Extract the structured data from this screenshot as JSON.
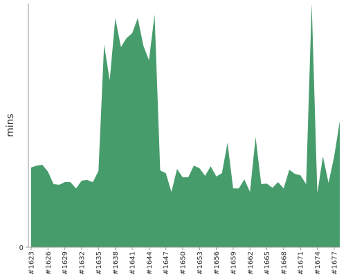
{
  "chart_data": {
    "type": "area",
    "y_label": "mins",
    "color": "#479c6c",
    "categories": [
      "#1623",
      null,
      null,
      "#1626",
      null,
      null,
      "#1629",
      null,
      null,
      "#1632",
      null,
      null,
      "#1635",
      null,
      null,
      "#1638",
      null,
      null,
      "#1641",
      null,
      null,
      "#1644",
      null,
      null,
      "#1647",
      null,
      null,
      "#1650",
      null,
      null,
      "#1653",
      null,
      null,
      "#1656",
      null,
      null,
      "#1659",
      null,
      null,
      "#1662",
      null,
      null,
      "#1665",
      null,
      null,
      "#1668",
      null,
      null,
      "#1671",
      null,
      null,
      "#1674",
      null,
      null,
      "#1677",
      null
    ],
    "values": [
      32.7,
      33.5,
      33.8,
      31.0,
      25.9,
      25.6,
      26.7,
      26.7,
      24.1,
      27.3,
      27.6,
      26.7,
      31.3,
      83.2,
      68.5,
      94.0,
      82.1,
      85.8,
      87.8,
      94.0,
      82.7,
      76.7,
      95.5,
      31.5,
      30.4,
      22.7,
      32.1,
      28.7,
      28.7,
      33.5,
      32.4,
      29.3,
      33.2,
      29.0,
      30.4,
      42.9,
      24.1,
      24.1,
      27.8,
      22.7,
      45.2,
      25.9,
      26.1,
      24.4,
      26.7,
      24.1,
      31.8,
      30.1,
      29.5,
      25.9,
      100,
      22.2,
      37.2,
      26.4,
      37.2,
      51.7
    ],
    "ylim": [
      0,
      100
    ],
    "yticks": [
      0
    ]
  }
}
